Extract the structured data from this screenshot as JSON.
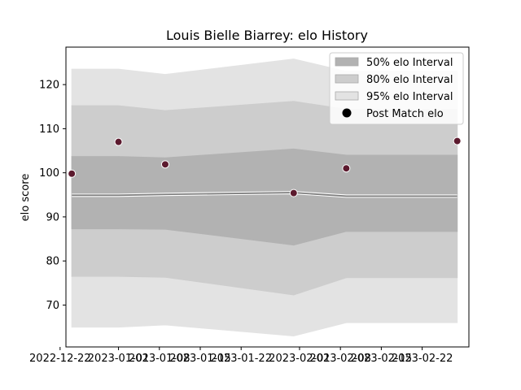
{
  "chart_data": {
    "type": "area",
    "title": "Louis Bielle Biarrey: elo History",
    "xlabel": "",
    "ylabel": "elo score",
    "x_ticks": [
      "2022-12-22",
      "2023-01-01",
      "2023-01-08",
      "2023-01-15",
      "2023-01-22",
      "2023-02-01",
      "2023-02-08",
      "2023-02-15",
      "2023-02-22"
    ],
    "y_ticks": [
      70,
      80,
      90,
      100,
      110,
      120
    ],
    "ylim": [
      60.5,
      128.5
    ],
    "x": [
      "2022-12-24",
      "2023-01-01",
      "2023-01-09",
      "2023-01-31",
      "2023-02-09",
      "2023-02-28"
    ],
    "series": [
      {
        "name": "",
        "kind": "line",
        "values": [
          94.9,
          94.9,
          95.1,
          95.5,
          94.7,
          94.7
        ]
      }
    ],
    "bands": [
      {
        "name": "95% elo Interval",
        "lower": [
          65.0,
          65.0,
          65.5,
          63.0,
          66.0,
          66.0
        ],
        "upper": [
          123.5,
          123.5,
          122.3,
          125.8,
          123.0,
          123.0
        ]
      },
      {
        "name": "80% elo Interval",
        "lower": [
          76.5,
          76.5,
          76.3,
          72.3,
          76.2,
          76.2
        ],
        "upper": [
          115.2,
          115.2,
          114.1,
          116.2,
          114.4,
          114.4
        ]
      },
      {
        "name": "50% elo Interval",
        "lower": [
          87.3,
          87.3,
          87.2,
          83.6,
          86.7,
          86.7
        ],
        "upper": [
          103.7,
          103.7,
          103.4,
          105.4,
          104.0,
          104.0
        ]
      }
    ],
    "points": {
      "name": "Post Match elo",
      "x": [
        "2022-12-24",
        "2023-01-01",
        "2023-01-09",
        "2023-01-31",
        "2023-02-09",
        "2023-02-28"
      ],
      "values": [
        99.8,
        107.0,
        101.9,
        95.4,
        101.0,
        107.2
      ]
    },
    "legend": {
      "position": "top-right",
      "entries": [
        "50% elo Interval",
        "80% elo Interval",
        "95% elo Interval",
        "Post Match elo"
      ]
    },
    "grid": false
  },
  "colors": {
    "band_50": "#b2b2b2",
    "band_80": "#cdcdcd",
    "band_95": "#e3e3e3",
    "line": "#808080",
    "points": "#5c1a2e"
  }
}
